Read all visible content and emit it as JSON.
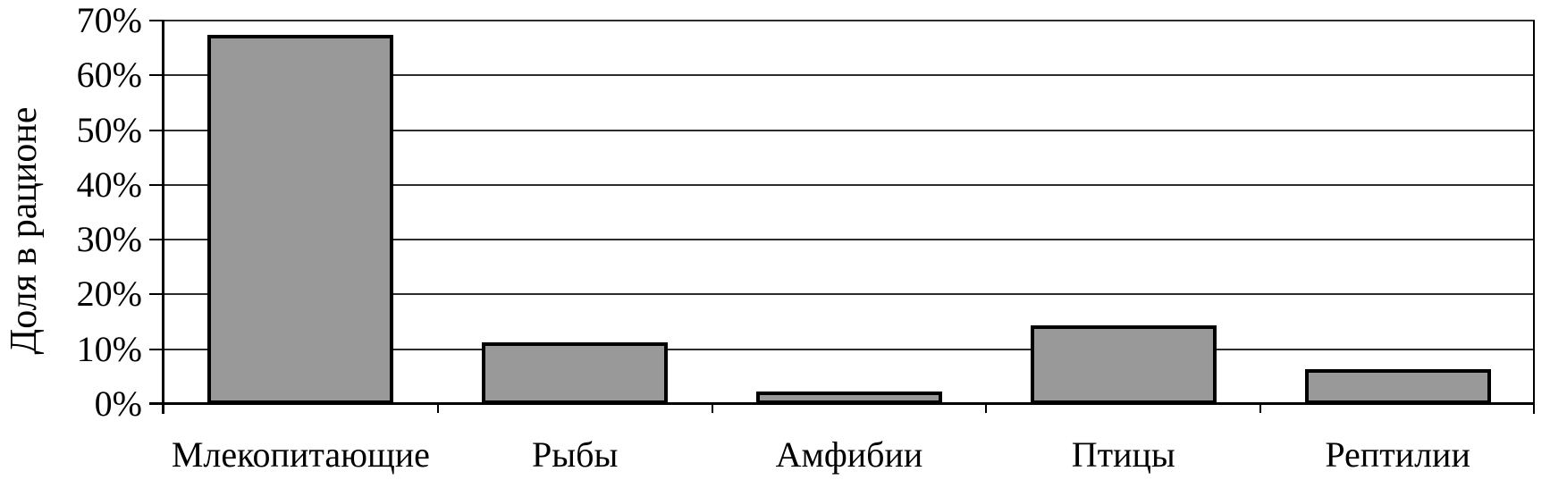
{
  "chart_data": {
    "type": "bar",
    "ylabel": "Доля в рационе",
    "categories": [
      "Млекопитающие",
      "Рыбы",
      "Амфибии",
      "Птицы",
      "Рептилии"
    ],
    "values": [
      67,
      11,
      2,
      14,
      6
    ],
    "unit": "%",
    "ylim": [
      0,
      70
    ],
    "ytick_step": 10,
    "ytick_labels": [
      "0%",
      "10%",
      "20%",
      "30%",
      "40%",
      "50%",
      "60%",
      "70%"
    ],
    "grid": true,
    "legend": false,
    "colors": {
      "bar_fill": "#999999",
      "bar_border": "#000000",
      "axis": "#000000",
      "gridline": "#2b2b2b",
      "text": "#000000",
      "background": "#ffffff"
    }
  }
}
